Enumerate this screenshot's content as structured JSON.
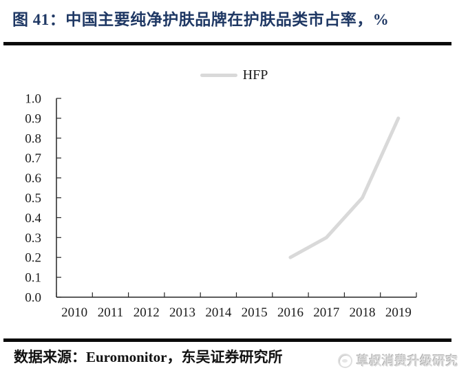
{
  "header": {
    "title": "图 41：中国主要纯净护肤品牌在护肤品类市占率，%"
  },
  "legend": {
    "label": "HFP"
  },
  "chart_data": {
    "type": "line",
    "title": "图 41：中国主要纯净护肤品牌在护肤品类市占率，%",
    "categories": [
      "2010",
      "2011",
      "2012",
      "2013",
      "2014",
      "2015",
      "2016",
      "2017",
      "2018",
      "2019"
    ],
    "series": [
      {
        "name": "HFP",
        "color": "#d9d9d9",
        "values": [
          null,
          null,
          null,
          null,
          null,
          null,
          0.2,
          0.3,
          0.5,
          0.9
        ]
      }
    ],
    "xlabel": "",
    "ylabel": "",
    "ylim": [
      0.0,
      1.0
    ],
    "ytick_step": 0.1,
    "ytick_labels": [
      "0.0",
      "0.1",
      "0.2",
      "0.3",
      "0.4",
      "0.5",
      "0.6",
      "0.7",
      "0.8",
      "0.9",
      "1.0"
    ],
    "grid": false,
    "legend_position": "top-center"
  },
  "footer": {
    "source": "数据来源：Euromonitor，东吴证券研究所",
    "watermark": "草叔消费升级研究"
  },
  "colors": {
    "title_text": "#1f3864",
    "rule": "#0a0a0a",
    "axis": "#262626",
    "tick_text": "#1a1a1a",
    "series_line": "#d9d9d9",
    "watermark_text": "#dcdcdc",
    "background": "#ffffff"
  }
}
